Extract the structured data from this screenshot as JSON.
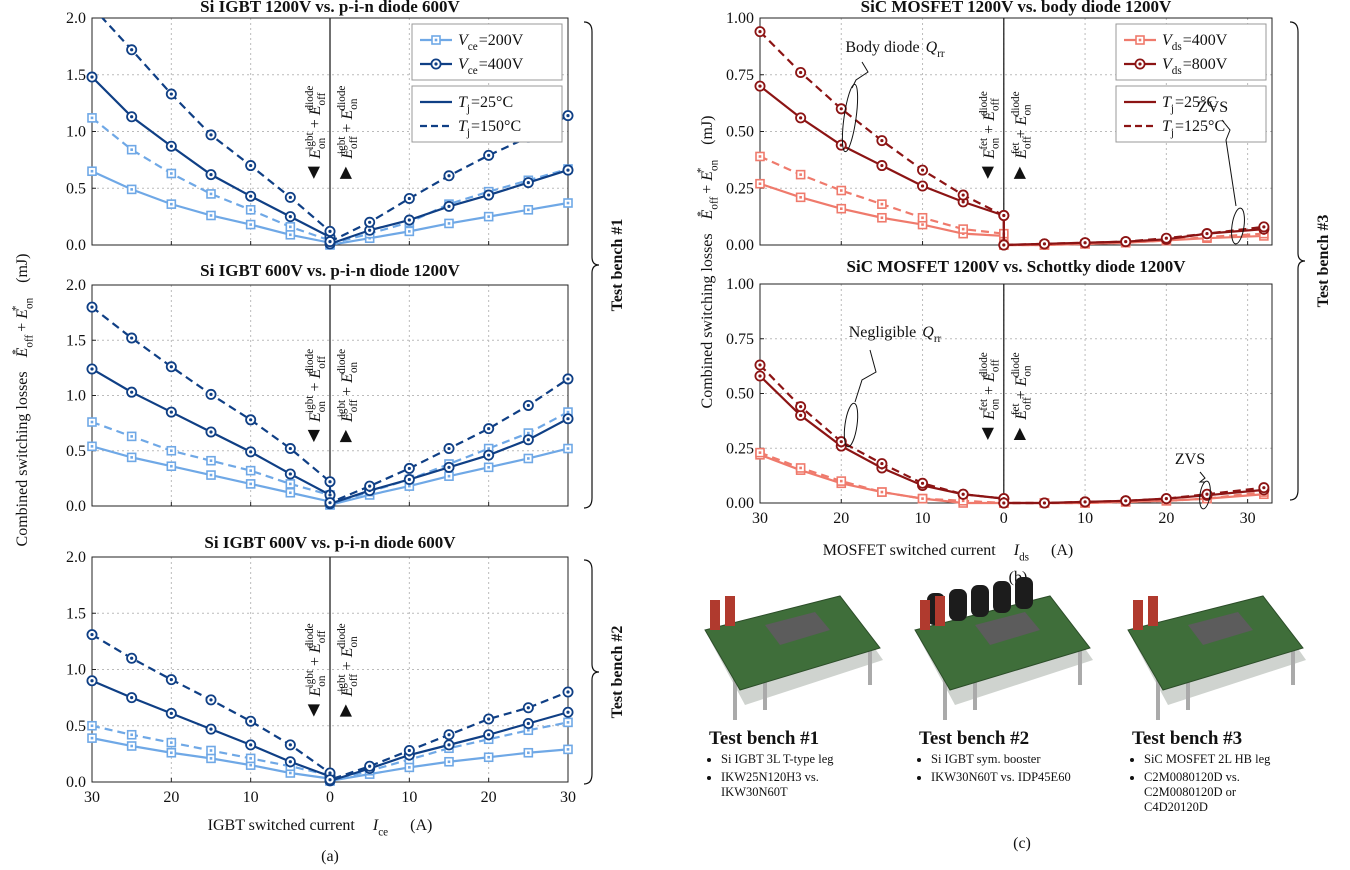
{
  "chart_data": [
    {
      "type": "line",
      "title": "Si IGBT 1200V vs. p-i-n diode 600V",
      "x": [
        -30,
        -25,
        -20,
        -15,
        -10,
        -5,
        0,
        0,
        5,
        10,
        15,
        20,
        25,
        30
      ],
      "xlim": [
        -30,
        30
      ],
      "xticks": [
        -30,
        -20,
        -10,
        0,
        10,
        20,
        30
      ],
      "xtick_labels": false,
      "ylim": [
        0,
        2
      ],
      "yticks": [
        {
          "value": 0,
          "label": "0.0"
        },
        0.5,
        {
          "value": 1,
          "label": "1.0"
        },
        1.5,
        {
          "value": 2,
          "label": "2.0"
        }
      ],
      "grid": true,
      "legend": {
        "voltage": [
          {
            "base": "V",
            "sub": "ce",
            "rest": "=200V",
            "color": "#6fa8e6",
            "marker": "square"
          },
          {
            "base": "V",
            "sub": "ce",
            "rest": "=400V",
            "color": "#0f3f85",
            "marker": "circle"
          }
        ],
        "temperature": [
          {
            "base": "T",
            "sub": "j",
            "rest": "=25°C",
            "color": "#0f3f85",
            "dash": false
          },
          {
            "base": "T",
            "sub": "j",
            "rest": "=150°C",
            "color": "#0f3f85",
            "dash": true
          }
        ]
      },
      "notes": [
        {
          "arrow": "◀",
          "terms": [
            {
              "base": "E",
              "sub": "on",
              "sup": "igbt"
            },
            {
              "base": "E",
              "sub": "off",
              "sup": "diode"
            }
          ],
          "joiner": "+"
        },
        {
          "arrow": "▶",
          "terms": [
            {
              "base": "E",
              "sub": "off",
              "sup": "igbt"
            },
            {
              "base": "E",
              "sub": "on",
              "sup": "diode"
            }
          ],
          "joiner": "+"
        }
      ],
      "series": [
        {
          "color": "#6fa8e6",
          "marker": "square",
          "dash": false,
          "values": [
            0.65,
            0.49,
            0.36,
            0.26,
            0.18,
            0.09,
            0.02,
            0.0,
            0.06,
            0.12,
            0.19,
            0.25,
            0.31,
            0.37
          ]
        },
        {
          "color": "#6fa8e6",
          "marker": "square",
          "dash": true,
          "values": [
            1.12,
            0.84,
            0.63,
            0.45,
            0.31,
            0.16,
            0.04,
            0.01,
            0.1,
            0.2,
            0.36,
            0.47,
            0.57,
            0.67
          ]
        },
        {
          "color": "#0f3f85",
          "marker": "circle",
          "dash": false,
          "values": [
            1.48,
            1.13,
            0.87,
            0.62,
            0.43,
            0.25,
            0.07,
            0.01,
            0.13,
            0.22,
            0.34,
            0.44,
            0.55,
            0.66
          ]
        },
        {
          "color": "#0f3f85",
          "marker": "circle",
          "dash": true,
          "values": [
            2.1,
            1.72,
            1.33,
            0.97,
            0.7,
            0.42,
            0.12,
            0.03,
            0.2,
            0.41,
            0.61,
            0.79,
            0.95,
            1.14
          ]
        }
      ]
    },
    {
      "type": "line",
      "title": "Si IGBT 600V vs. p-i-n diode 1200V",
      "x": [
        -30,
        -25,
        -20,
        -15,
        -10,
        -5,
        0,
        0,
        5,
        10,
        15,
        20,
        25,
        30
      ],
      "xlim": [
        -30,
        30
      ],
      "xticks": [
        -30,
        -20,
        -10,
        0,
        10,
        20,
        30
      ],
      "xtick_labels": false,
      "ylim": [
        0,
        2
      ],
      "yticks": [
        {
          "value": 0,
          "label": "0.0"
        },
        0.5,
        {
          "value": 1,
          "label": "1.0"
        },
        1.5,
        {
          "value": 2,
          "label": "2.0"
        }
      ],
      "grid": true,
      "notes": [
        {
          "arrow": "◀",
          "terms": [
            {
              "base": "E",
              "sub": "on",
              "sup": "igbt"
            },
            {
              "base": "E",
              "sub": "off",
              "sup": "diode"
            }
          ],
          "joiner": "+"
        },
        {
          "arrow": "▶",
          "terms": [
            {
              "base": "E",
              "sub": "off",
              "sup": "igbt"
            },
            {
              "base": "E",
              "sub": "on",
              "sup": "diode"
            }
          ],
          "joiner": "+"
        }
      ],
      "series": [
        {
          "color": "#6fa8e6",
          "marker": "square",
          "dash": false,
          "values": [
            0.54,
            0.44,
            0.36,
            0.28,
            0.2,
            0.12,
            0.04,
            0.01,
            0.1,
            0.18,
            0.27,
            0.35,
            0.43,
            0.52
          ]
        },
        {
          "color": "#6fa8e6",
          "marker": "square",
          "dash": true,
          "values": [
            0.76,
            0.63,
            0.5,
            0.41,
            0.32,
            0.2,
            0.1,
            0.01,
            0.13,
            0.24,
            0.38,
            0.52,
            0.66,
            0.85
          ]
        },
        {
          "color": "#0f3f85",
          "marker": "circle",
          "dash": false,
          "values": [
            1.24,
            1.03,
            0.85,
            0.67,
            0.49,
            0.29,
            0.1,
            0.02,
            0.14,
            0.24,
            0.35,
            0.46,
            0.6,
            0.79
          ]
        },
        {
          "color": "#0f3f85",
          "marker": "circle",
          "dash": true,
          "values": [
            1.8,
            1.52,
            1.26,
            1.01,
            0.78,
            0.52,
            0.22,
            0.03,
            0.18,
            0.34,
            0.52,
            0.7,
            0.91,
            1.15
          ]
        }
      ]
    },
    {
      "type": "line",
      "title": "Si IGBT 600V vs. p-i-n diode 600V",
      "x": [
        -30,
        -25,
        -20,
        -15,
        -10,
        -5,
        0,
        0,
        5,
        10,
        15,
        20,
        25,
        30
      ],
      "xlim": [
        -30,
        30
      ],
      "xticks": [
        {
          "value": -30,
          "label": "30"
        },
        {
          "value": -20,
          "label": "20"
        },
        {
          "value": -10,
          "label": "10"
        },
        0,
        10,
        20,
        30
      ],
      "ylim": [
        0,
        2
      ],
      "yticks": [
        {
          "value": 0,
          "label": "0.0"
        },
        0.5,
        {
          "value": 1,
          "label": "1.0"
        },
        1.5,
        {
          "value": 2,
          "label": "2.0"
        }
      ],
      "grid": true,
      "notes": [
        {
          "arrow": "◀",
          "terms": [
            {
              "base": "E",
              "sub": "on",
              "sup": "igbt"
            },
            {
              "base": "E",
              "sub": "off",
              "sup": "diode"
            }
          ],
          "joiner": "+"
        },
        {
          "arrow": "▶",
          "terms": [
            {
              "base": "E",
              "sub": "off",
              "sup": "igbt"
            },
            {
              "base": "E",
              "sub": "on",
              "sup": "diode"
            }
          ],
          "joiner": "+"
        }
      ],
      "series": [
        {
          "color": "#6fa8e6",
          "marker": "square",
          "dash": false,
          "values": [
            0.39,
            0.32,
            0.26,
            0.21,
            0.15,
            0.08,
            0.03,
            0.01,
            0.07,
            0.13,
            0.18,
            0.22,
            0.26,
            0.29
          ]
        },
        {
          "color": "#6fa8e6",
          "marker": "square",
          "dash": true,
          "values": [
            0.5,
            0.42,
            0.35,
            0.28,
            0.21,
            0.14,
            0.06,
            0.01,
            0.1,
            0.2,
            0.3,
            0.38,
            0.46,
            0.53
          ]
        },
        {
          "color": "#0f3f85",
          "marker": "circle",
          "dash": false,
          "values": [
            0.9,
            0.75,
            0.61,
            0.47,
            0.33,
            0.18,
            0.05,
            0.01,
            0.12,
            0.24,
            0.33,
            0.42,
            0.52,
            0.62
          ]
        },
        {
          "color": "#0f3f85",
          "marker": "circle",
          "dash": true,
          "values": [
            1.31,
            1.1,
            0.91,
            0.73,
            0.54,
            0.33,
            0.08,
            0.02,
            0.14,
            0.28,
            0.42,
            0.56,
            0.66,
            0.8
          ]
        }
      ]
    },
    {
      "type": "line",
      "title": "SiC MOSFET 1200V vs. body diode 1200V",
      "x": [
        -30,
        -25,
        -20,
        -15,
        -10,
        -5,
        0,
        0,
        5,
        10,
        15,
        20,
        25,
        32
      ],
      "xlim": [
        -30,
        33
      ],
      "xticks": [
        -30,
        -20,
        -10,
        0,
        10,
        20,
        30
      ],
      "xtick_labels": false,
      "ylim": [
        0,
        1
      ],
      "yticks": [
        {
          "value": 0,
          "label": "0.00"
        },
        0.25,
        {
          "value": 0.5,
          "label": "0.50"
        },
        0.75,
        {
          "value": 1,
          "label": "1.00"
        }
      ],
      "grid": true,
      "legend": {
        "voltage": [
          {
            "base": "V",
            "sub": "ds",
            "rest": "=400V",
            "color": "#ef7a6c",
            "marker": "square"
          },
          {
            "base": "V",
            "sub": "ds",
            "rest": "=800V",
            "color": "#8c1414",
            "marker": "circle"
          }
        ],
        "temperature": [
          {
            "base": "T",
            "sub": "j",
            "rest": "=25°C",
            "color": "#8c1414",
            "dash": false
          },
          {
            "base": "T",
            "sub": "j",
            "rest": "=125°C",
            "color": "#8c1414",
            "dash": true
          }
        ]
      },
      "notes": [
        {
          "arrow": "◀",
          "terms": [
            {
              "base": "E",
              "sub": "on",
              "sup": "fet"
            },
            {
              "base": "E",
              "sub": "off",
              "sup": "diode"
            }
          ],
          "joiner": "+"
        },
        {
          "arrow": "▶",
          "terms": [
            {
              "base": "E",
              "sub": "off",
              "sup": "fet"
            },
            {
              "base": "E",
              "sub": "on",
              "sup": "diode"
            }
          ],
          "joiner": "+"
        }
      ],
      "annotations": [
        {
          "text": "Body diode",
          "symbol": {
            "base": "Q",
            "sub": "rr"
          }
        },
        {
          "text": "ZVS"
        }
      ],
      "series": [
        {
          "color": "#ef7a6c",
          "marker": "square",
          "dash": false,
          "values": [
            0.27,
            0.21,
            0.16,
            0.12,
            0.09,
            0.05,
            0.04,
            0.0,
            0.0,
            0.005,
            0.01,
            0.02,
            0.03,
            0.04
          ]
        },
        {
          "color": "#ef7a6c",
          "marker": "square",
          "dash": true,
          "values": [
            0.39,
            0.31,
            0.24,
            0.18,
            0.12,
            0.07,
            0.05,
            0.0,
            0.0,
            0.005,
            0.01,
            0.02,
            0.035,
            0.05
          ]
        },
        {
          "color": "#8c1414",
          "marker": "circle",
          "dash": false,
          "values": [
            0.7,
            0.56,
            0.44,
            0.35,
            0.26,
            0.19,
            0.13,
            0.0,
            0.005,
            0.01,
            0.015,
            0.025,
            0.05,
            0.07
          ]
        },
        {
          "color": "#8c1414",
          "marker": "circle",
          "dash": true,
          "values": [
            0.94,
            0.76,
            0.6,
            0.46,
            0.33,
            0.22,
            0.13,
            0.0,
            0.005,
            0.01,
            0.015,
            0.03,
            0.05,
            0.08
          ]
        }
      ]
    },
    {
      "type": "line",
      "title": "SiC MOSFET 1200V vs. Schottky diode 1200V",
      "x": [
        -30,
        -25,
        -20,
        -15,
        -10,
        -5,
        0,
        0,
        5,
        10,
        15,
        20,
        25,
        32
      ],
      "xlim": [
        -30,
        33
      ],
      "xticks": [
        {
          "value": -30,
          "label": "30"
        },
        {
          "value": -20,
          "label": "20"
        },
        {
          "value": -10,
          "label": "10"
        },
        0,
        10,
        20,
        30
      ],
      "ylim": [
        0,
        1
      ],
      "yticks": [
        {
          "value": 0,
          "label": "0.00"
        },
        0.25,
        {
          "value": 0.5,
          "label": "0.50"
        },
        0.75,
        {
          "value": 1,
          "label": "1.00"
        }
      ],
      "grid": true,
      "notes": [
        {
          "arrow": "◀",
          "terms": [
            {
              "base": "E",
              "sub": "on",
              "sup": "fet"
            },
            {
              "base": "E",
              "sub": "off",
              "sup": "diode"
            }
          ],
          "joiner": "+"
        },
        {
          "arrow": "▶",
          "terms": [
            {
              "base": "E",
              "sub": "off",
              "sup": "fet"
            },
            {
              "base": "E",
              "sub": "on",
              "sup": "diode"
            }
          ],
          "joiner": "+"
        }
      ],
      "annotations": [
        {
          "text": "Negligible",
          "symbol": {
            "base": "Q",
            "sub": "rr"
          }
        },
        {
          "text": "ZVS"
        }
      ],
      "series": [
        {
          "color": "#ef7a6c",
          "marker": "square",
          "dash": false,
          "values": [
            0.22,
            0.15,
            0.09,
            0.05,
            0.02,
            0.0,
            0.0,
            0.0,
            0.0,
            0.0,
            0.005,
            0.01,
            0.02,
            0.04
          ]
        },
        {
          "color": "#ef7a6c",
          "marker": "square",
          "dash": true,
          "values": [
            0.23,
            0.16,
            0.1,
            0.05,
            0.02,
            0.01,
            0.0,
            0.0,
            0.0,
            0.0,
            0.005,
            0.01,
            0.02,
            0.05
          ]
        },
        {
          "color": "#8c1414",
          "marker": "circle",
          "dash": false,
          "values": [
            0.58,
            0.4,
            0.26,
            0.16,
            0.08,
            0.04,
            0.02,
            0.0,
            0.0,
            0.005,
            0.01,
            0.02,
            0.035,
            0.06
          ]
        },
        {
          "color": "#8c1414",
          "marker": "circle",
          "dash": true,
          "values": [
            0.63,
            0.44,
            0.28,
            0.18,
            0.09,
            0.04,
            0.02,
            0.0,
            0.0,
            0.005,
            0.01,
            0.02,
            0.04,
            0.07
          ]
        }
      ]
    }
  ],
  "figure": {
    "left": {
      "ylabel": {
        "text": "Combined switching losses",
        "terms": [
          {
            "base": "E",
            "sub": "off",
            "sup": "*"
          },
          {
            "base": "E",
            "sub": "on",
            "sup": "*"
          }
        ],
        "joiner": "+",
        "unit": "(mJ)"
      },
      "xlabel": {
        "text": "IGBT switched current",
        "symbol": {
          "base": "I",
          "sub": "ce"
        },
        "unit": "(A)"
      },
      "caption": "(a)"
    },
    "right": {
      "ylabel": {
        "text": "Combined switching losses",
        "terms": [
          {
            "base": "E",
            "sub": "off",
            "sup": "*"
          },
          {
            "base": "E",
            "sub": "on",
            "sup": "*"
          }
        ],
        "joiner": "+",
        "unit": "(mJ)"
      },
      "xlabel": {
        "text": "MOSFET switched current",
        "symbol": {
          "base": "I",
          "sub": "ds"
        },
        "unit": "(A)"
      },
      "caption": "(b)"
    },
    "benches": [
      "Test bench #1",
      "Test bench #2",
      "Test bench #3"
    ],
    "photos": {
      "caption": "(c)",
      "items": [
        {
          "title": "Test bench #1",
          "bullets": [
            "Si IGBT 3L T-type leg",
            "IKW25N120H3 vs. IKW30N60T"
          ]
        },
        {
          "title": "Test bench #2",
          "bullets": [
            "Si IGBT sym. booster",
            "IKW30N60T vs. IDP45E60"
          ]
        },
        {
          "title": "Test bench #3",
          "bullets": [
            "SiC MOSFET 2L HB leg",
            "C2M0080120D vs. C2M0080120D or C4D20120D"
          ]
        }
      ]
    }
  }
}
